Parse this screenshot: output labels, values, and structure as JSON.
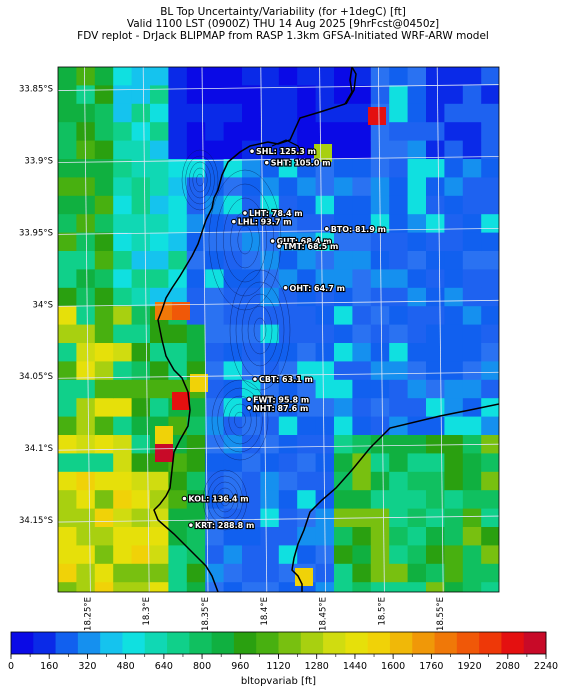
{
  "title_lines": [
    "BL Top Uncertainty/Variability (for +1degC) [ft]",
    "Valid 1100 LST (0900Z) THU 14 Aug 2025 [9hrFcst@0450z]",
    "FDV replot - DrJack BLIPMAP from RASP 1.3km GFSA-Initiated WRF-ARW model"
  ],
  "map": {
    "lat_range": [
      -34.2,
      -33.835
    ],
    "lon_range": [
      18.225,
      18.6
    ],
    "lat_ticks": [
      {
        "value": -33.85,
        "label": "33.85°S"
      },
      {
        "value": -33.9,
        "label": "33.9°S"
      },
      {
        "value": -33.95,
        "label": "33.95°S"
      },
      {
        "value": -34.0,
        "label": "34°S"
      },
      {
        "value": -34.05,
        "label": "34.05°S"
      },
      {
        "value": -34.1,
        "label": "34.1°S"
      },
      {
        "value": -34.15,
        "label": "34.15°S"
      }
    ],
    "lon_ticks": [
      {
        "value": 18.25,
        "label": "18.25°E"
      },
      {
        "value": 18.3,
        "label": "18.3°E"
      },
      {
        "value": 18.35,
        "label": "18.35°E"
      },
      {
        "value": 18.4,
        "label": "18.4°E"
      },
      {
        "value": 18.45,
        "label": "18.45°E"
      },
      {
        "value": 18.5,
        "label": "18.5°E"
      },
      {
        "value": 18.55,
        "label": "18.55°E"
      }
    ],
    "stations": [
      {
        "code": "SHL",
        "lat": -33.8935,
        "lon": 18.39,
        "label": "SHL: 125.3 m"
      },
      {
        "code": "SHT",
        "lat": -33.9015,
        "lon": 18.4025,
        "label": "SHT: 105.0 m"
      },
      {
        "code": "LHT",
        "lat": -33.9365,
        "lon": 18.384,
        "label": "LHT: 78.4 m"
      },
      {
        "code": "LHL",
        "lat": -33.9425,
        "lon": 18.3745,
        "label": "LHL: 93.7 m"
      },
      {
        "code": "BTO",
        "lat": -33.9475,
        "lon": 18.4535,
        "label": "BTO: 81.9 m"
      },
      {
        "code": "GUT",
        "lat": -33.956,
        "lon": 18.4075,
        "label": "GUT: 68.4 m"
      },
      {
        "code": "TMT",
        "lat": -33.9595,
        "lon": 18.413,
        "label": "TMT: 68.5 m"
      },
      {
        "code": "OHT",
        "lat": -33.9885,
        "lon": 18.4185,
        "label": "OHT: 64.7 m"
      },
      {
        "code": "CBT",
        "lat": -34.052,
        "lon": 18.3925,
        "label": "CBT: 63.1 m"
      },
      {
        "code": "FWT",
        "lat": -34.066,
        "lon": 18.3875,
        "label": "FWT: 95.8 m"
      },
      {
        "code": "NHT",
        "lat": -34.072,
        "lon": 18.3875,
        "label": "NHT: 87.6 m"
      },
      {
        "code": "KOL",
        "lat": -34.135,
        "lon": 18.3325,
        "label": "KOL: 136.4 m"
      },
      {
        "code": "KRT",
        "lat": -34.1535,
        "lon": 18.338,
        "label": "KRT: 288.8 m"
      }
    ],
    "colors": {
      "ocean_deep": "#0a2ae8",
      "ocean_mid": "#1e62f0",
      "coastline": "#000000",
      "grid": "#dfe6f5"
    }
  },
  "colorbar": {
    "min": 0,
    "max": 2240,
    "step": 80,
    "tick_values": [
      0,
      160,
      320,
      480,
      640,
      800,
      960,
      1120,
      1280,
      1440,
      1600,
      1760,
      1920,
      2080,
      2240
    ],
    "tick_labels": [
      "0",
      "160",
      "320",
      "480",
      "640",
      "800",
      "960",
      "1120",
      "1280",
      "1440",
      "1600",
      "1760",
      "1920",
      "2080",
      "2240"
    ],
    "colors": [
      "#0a0ae6",
      "#0a2ae8",
      "#1160ef",
      "#1590ef",
      "#15c3ee",
      "#10e0e0",
      "#10d8b4",
      "#10d08a",
      "#10c060",
      "#10b040",
      "#2aa010",
      "#48b010",
      "#78c010",
      "#a8d010",
      "#d0dc10",
      "#e6e00a",
      "#f0d208",
      "#f0b808",
      "#f09808",
      "#f07808",
      "#f05808",
      "#ee3808",
      "#e41010",
      "#c80a28"
    ],
    "label": "bltopvariab [ft]"
  }
}
